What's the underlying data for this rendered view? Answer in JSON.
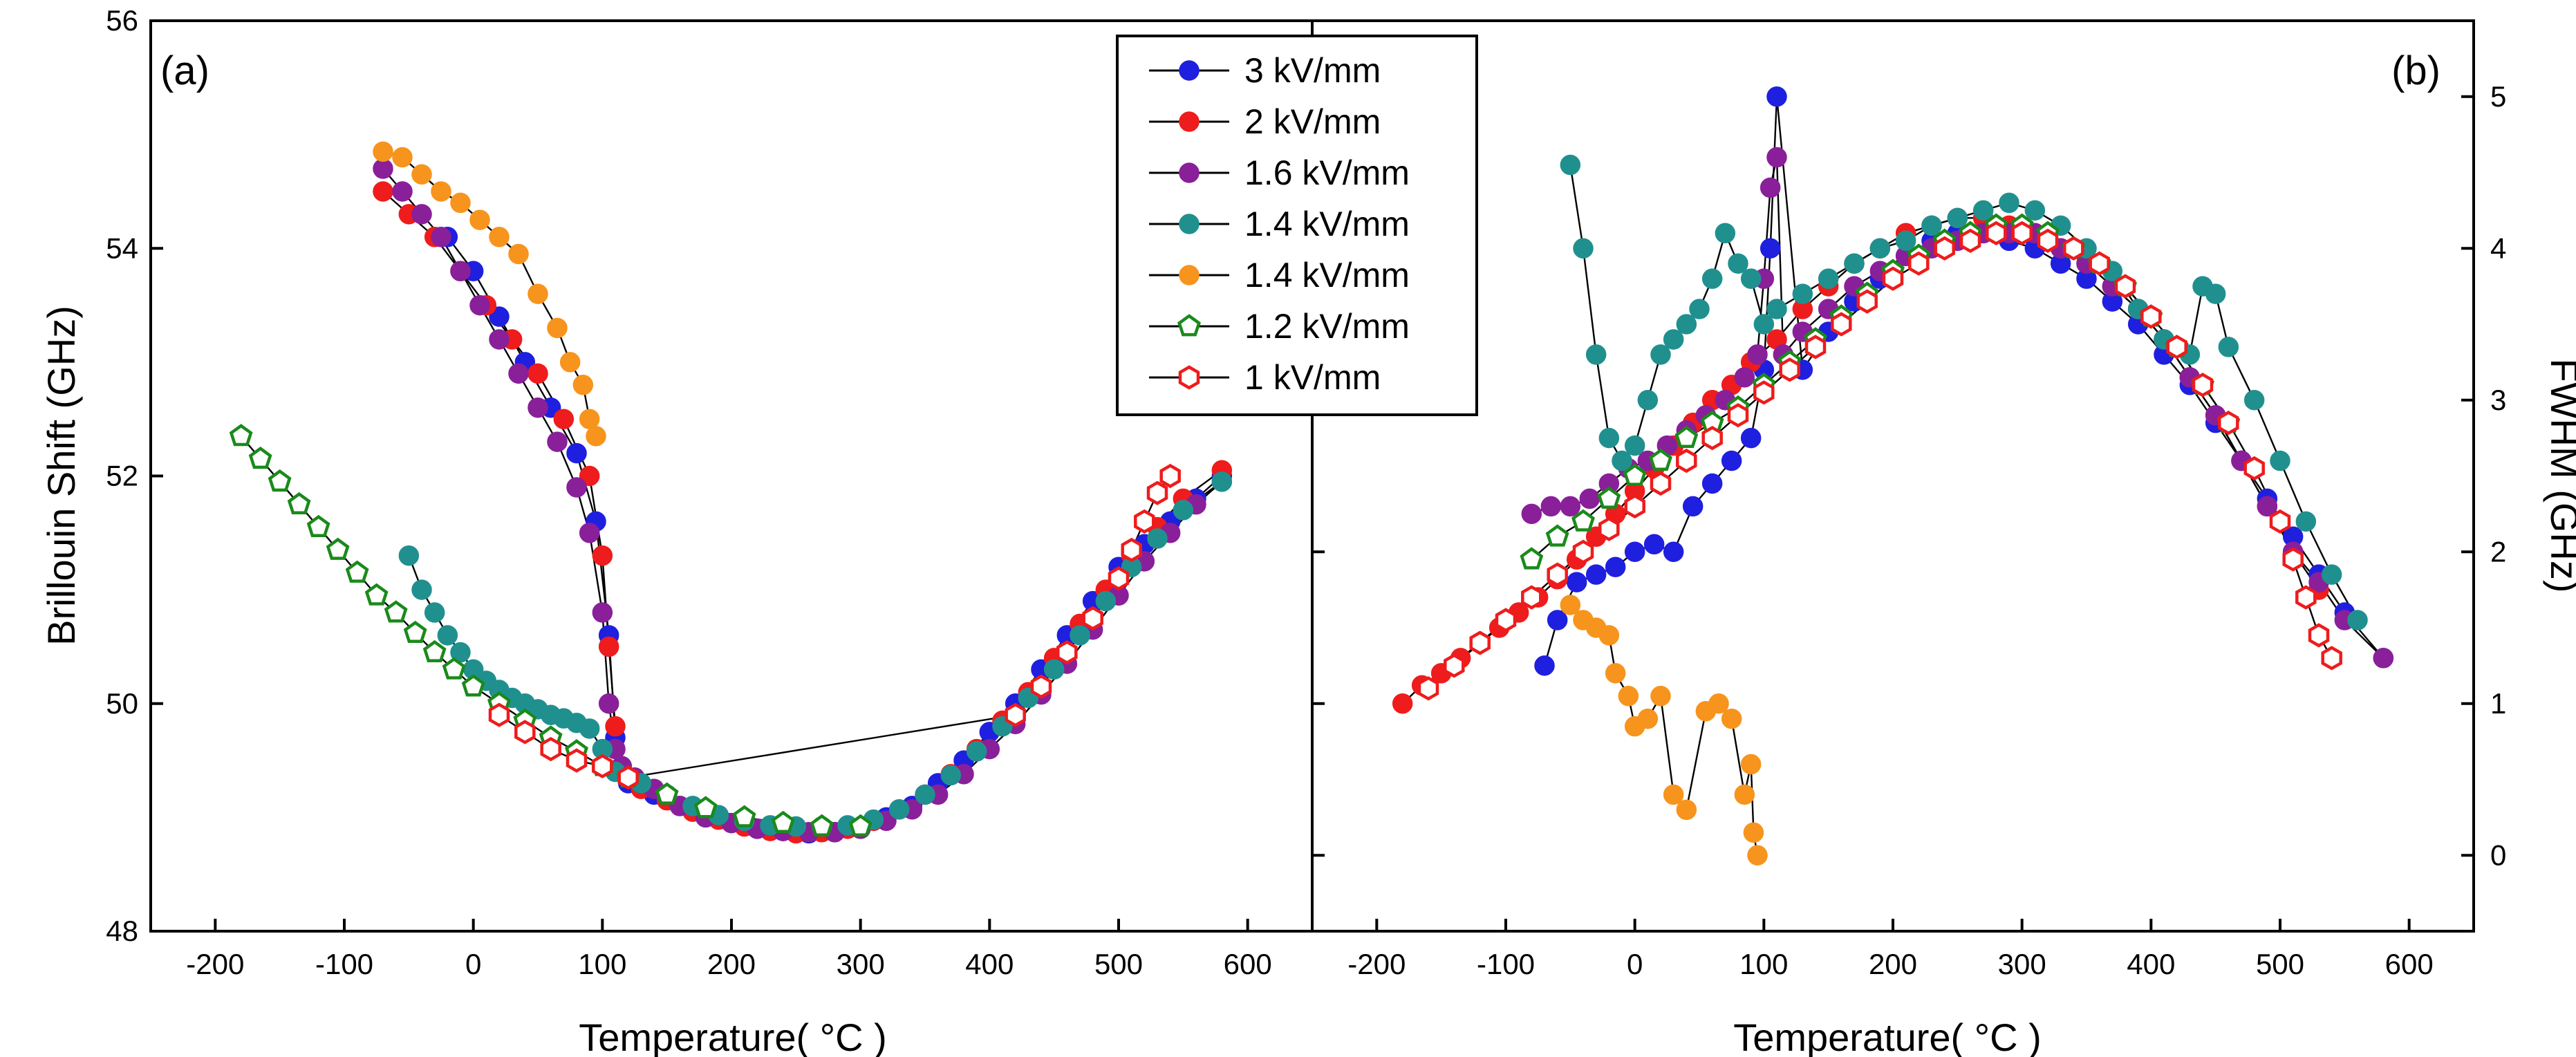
{
  "figure": {
    "left_panel_label": "(a)",
    "right_panel_label": "(b)"
  },
  "chart_data": [
    {
      "type": "scatter",
      "panel": "a",
      "title": "",
      "xlabel": "Temperature( °C )",
      "ylabel": "Brillouin Shift (GHz)",
      "xlim": [
        -250,
        650
      ],
      "ylim": [
        48,
        56
      ],
      "xticks": [
        -200,
        -100,
        0,
        100,
        200,
        300,
        400,
        500,
        600
      ],
      "yticks": [
        48,
        50,
        52,
        54,
        56
      ],
      "legend_position": "top-center",
      "series": [
        {
          "name": "3 kV/mm",
          "color": "#1f1fe0",
          "marker": "filled",
          "x": [
            -20,
            0,
            20,
            40,
            60,
            80,
            95,
            105,
            110,
            115,
            120,
            140,
            160,
            180,
            200,
            220,
            240,
            260,
            280,
            300,
            320,
            340,
            360,
            380,
            400,
            420,
            440,
            460,
            480,
            500,
            520,
            540,
            560,
            580
          ],
          "y": [
            54.1,
            53.8,
            53.4,
            53.0,
            52.6,
            52.2,
            51.6,
            50.6,
            49.7,
            49.4,
            49.3,
            49.2,
            49.1,
            49.0,
            48.95,
            48.9,
            48.88,
            48.86,
            48.87,
            48.9,
            49.0,
            49.1,
            49.3,
            49.5,
            49.75,
            50.0,
            50.3,
            50.6,
            50.9,
            51.2,
            51.4,
            51.6,
            51.8,
            52.0
          ]
        },
        {
          "name": "2 kV/mm",
          "color": "#ee1c1c",
          "marker": "filled",
          "x": [
            -70,
            -50,
            -30,
            -10,
            10,
            30,
            50,
            70,
            90,
            100,
            105,
            110,
            115,
            130,
            150,
            170,
            190,
            210,
            230,
            250,
            270,
            290,
            310,
            330,
            350,
            370,
            390,
            410,
            430,
            450,
            470,
            490,
            510,
            530,
            550,
            580
          ],
          "y": [
            54.5,
            54.3,
            54.1,
            53.8,
            53.5,
            53.2,
            52.9,
            52.5,
            52.0,
            51.3,
            50.5,
            49.8,
            49.4,
            49.25,
            49.15,
            49.05,
            48.98,
            48.92,
            48.88,
            48.86,
            48.87,
            48.9,
            48.97,
            49.07,
            49.2,
            49.38,
            49.6,
            49.85,
            50.1,
            50.4,
            50.7,
            51.0,
            51.3,
            51.55,
            51.8,
            52.05
          ]
        },
        {
          "name": "1.6 kV/mm",
          "color": "#8a1f9a",
          "marker": "filled",
          "x": [
            -70,
            -55,
            -40,
            -25,
            -10,
            5,
            20,
            35,
            50,
            65,
            80,
            90,
            100,
            105,
            110,
            115,
            125,
            140,
            160,
            180,
            200,
            220,
            240,
            260,
            280,
            300,
            320,
            340,
            360,
            380,
            400,
            420,
            440,
            460,
            480,
            500,
            520,
            540,
            560,
            580
          ],
          "y": [
            54.7,
            54.5,
            54.3,
            54.1,
            53.8,
            53.5,
            53.2,
            52.9,
            52.6,
            52.3,
            51.9,
            51.5,
            50.8,
            50.0,
            49.6,
            49.45,
            49.35,
            49.25,
            49.1,
            49.0,
            48.95,
            48.9,
            48.88,
            48.87,
            48.87,
            48.9,
            48.97,
            49.07,
            49.2,
            49.38,
            49.6,
            49.82,
            50.08,
            50.35,
            50.65,
            50.95,
            51.25,
            51.5,
            51.75,
            51.95
          ]
        },
        {
          "name": "1.4 kV/mm",
          "color": "#20908f",
          "marker": "filled",
          "x": [
            -50,
            -40,
            -30,
            -20,
            -10,
            0,
            10,
            20,
            30,
            40,
            50,
            60,
            70,
            80,
            90,
            100,
            110,
            130,
            150,
            170,
            190,
            210,
            230,
            250,
            270,
            290,
            310,
            330,
            350,
            370,
            390,
            410,
            430,
            450,
            470,
            490,
            510,
            530,
            550,
            580
          ],
          "y": [
            51.3,
            51.0,
            50.8,
            50.6,
            50.45,
            50.3,
            50.2,
            50.12,
            50.05,
            50.0,
            49.95,
            49.9,
            49.87,
            49.83,
            49.78,
            49.6,
            49.4,
            49.3,
            49.2,
            49.1,
            49.02,
            48.97,
            48.93,
            48.92,
            48.92,
            48.93,
            48.98,
            49.07,
            49.2,
            49.37,
            49.58,
            49.8,
            50.05,
            50.3,
            50.6,
            50.9,
            51.2,
            51.45,
            51.7,
            51.95
          ]
        },
        {
          "name": "1.4 kV/mm",
          "color": "#f7941d",
          "marker": "filled",
          "x": [
            -70,
            -55,
            -40,
            -25,
            -10,
            5,
            20,
            35,
            50,
            65,
            75,
            85,
            90,
            95
          ],
          "y": [
            54.85,
            54.8,
            54.65,
            54.5,
            54.4,
            54.25,
            54.1,
            53.95,
            53.6,
            53.3,
            53.0,
            52.8,
            52.5,
            52.35
          ]
        },
        {
          "name": "1.2 kV/mm",
          "color": "#1a8a1a",
          "marker": "open-pentagon",
          "x": [
            -180,
            -165,
            -150,
            -135,
            -120,
            -105,
            -90,
            -75,
            -60,
            -45,
            -30,
            -15,
            0,
            20,
            40,
            60,
            80,
            100,
            120,
            150,
            180,
            210,
            240,
            270,
            300
          ],
          "y": [
            52.35,
            52.15,
            51.95,
            51.75,
            51.55,
            51.35,
            51.15,
            50.95,
            50.8,
            50.62,
            50.45,
            50.3,
            50.15,
            50.0,
            49.85,
            49.7,
            49.58,
            49.45,
            49.35,
            49.2,
            49.08,
            49.0,
            48.95,
            48.92,
            48.92
          ]
        },
        {
          "name": "1 kV/mm",
          "color": "#ee1c1c",
          "marker": "open-hexagon",
          "x": [
            20,
            40,
            60,
            80,
            100,
            120,
            420,
            440,
            460,
            480,
            500,
            510,
            520,
            530,
            540
          ],
          "y": [
            49.9,
            49.75,
            49.6,
            49.5,
            49.45,
            49.35,
            49.9,
            50.15,
            50.45,
            50.75,
            51.1,
            51.35,
            51.6,
            51.85,
            52.0
          ]
        }
      ]
    },
    {
      "type": "scatter",
      "panel": "b",
      "title": "",
      "xlabel": "Temperature( °C )",
      "ylabel": "FWHM (GHz)",
      "xlim": [
        -250,
        650
      ],
      "ylim": [
        -0.5,
        5.5
      ],
      "xticks": [
        -200,
        -100,
        0,
        100,
        200,
        300,
        400,
        500,
        600
      ],
      "yticks": [
        0,
        1,
        2,
        3,
        4,
        5
      ],
      "series": [
        {
          "name": "3 kV/mm",
          "color": "#1f1fe0",
          "marker": "filled",
          "x": [
            -70,
            -60,
            -45,
            -30,
            -15,
            0,
            15,
            30,
            45,
            60,
            75,
            90,
            100,
            105,
            110,
            130,
            150,
            170,
            190,
            210,
            230,
            250,
            270,
            290,
            310,
            330,
            350,
            370,
            390,
            410,
            430,
            450,
            470,
            490,
            510,
            530,
            550,
            580
          ],
          "y": [
            1.25,
            1.55,
            1.8,
            1.85,
            1.9,
            2.0,
            2.05,
            2.0,
            2.3,
            2.45,
            2.6,
            2.75,
            3.2,
            4.0,
            5.0,
            3.2,
            3.45,
            3.65,
            3.8,
            3.95,
            4.05,
            4.1,
            4.1,
            4.05,
            4.0,
            3.9,
            3.8,
            3.65,
            3.5,
            3.3,
            3.1,
            2.85,
            2.6,
            2.35,
            2.1,
            1.85,
            1.6,
            1.3
          ]
        },
        {
          "name": "2 kV/mm",
          "color": "#ee1c1c",
          "marker": "filled",
          "x": [
            -180,
            -165,
            -150,
            -135,
            -120,
            -105,
            -90,
            -75,
            -60,
            -45,
            -30,
            -15,
            0,
            15,
            30,
            45,
            60,
            75,
            90,
            110,
            130,
            150,
            170,
            190,
            210,
            230,
            250,
            270,
            290,
            310,
            330,
            350,
            370,
            390,
            410,
            430,
            450,
            470,
            490,
            510,
            530
          ],
          "y": [
            1.0,
            1.12,
            1.2,
            1.3,
            1.4,
            1.5,
            1.6,
            1.7,
            1.82,
            1.95,
            2.1,
            2.25,
            2.4,
            2.55,
            2.7,
            2.85,
            3.0,
            3.1,
            3.25,
            3.4,
            3.6,
            3.75,
            3.9,
            4.0,
            4.1,
            4.15,
            4.2,
            4.2,
            4.15,
            4.1,
            4.0,
            3.9,
            3.75,
            3.6,
            3.4,
            3.15,
            2.9,
            2.6,
            2.3,
            2.0,
            1.75
          ]
        },
        {
          "name": "1.6 kV/mm",
          "color": "#8a1f9a",
          "marker": "filled",
          "x": [
            -80,
            -65,
            -50,
            -35,
            -20,
            -5,
            10,
            25,
            40,
            55,
            70,
            85,
            95,
            100,
            105,
            110,
            115,
            130,
            150,
            170,
            190,
            210,
            230,
            250,
            270,
            290,
            310,
            330,
            350,
            370,
            390,
            410,
            430,
            450,
            470,
            490,
            510,
            530,
            550,
            580
          ],
          "y": [
            2.25,
            2.3,
            2.3,
            2.35,
            2.45,
            2.55,
            2.6,
            2.7,
            2.8,
            2.9,
            3.0,
            3.15,
            3.3,
            3.8,
            4.4,
            4.6,
            3.3,
            3.45,
            3.6,
            3.75,
            3.85,
            3.95,
            4.0,
            4.05,
            4.1,
            4.1,
            4.1,
            4.0,
            3.9,
            3.75,
            3.6,
            3.4,
            3.15,
            2.9,
            2.6,
            2.3,
            2.0,
            1.8,
            1.55,
            1.3
          ]
        },
        {
          "name": "1.4 kV/mm",
          "color": "#20908f",
          "marker": "filled",
          "x": [
            -50,
            -40,
            -30,
            -20,
            -10,
            0,
            10,
            20,
            30,
            40,
            50,
            60,
            70,
            80,
            90,
            100,
            110,
            130,
            150,
            170,
            190,
            210,
            230,
            250,
            270,
            290,
            310,
            330,
            350,
            370,
            390,
            410,
            430,
            440,
            450,
            460,
            480,
            500,
            520,
            540,
            560
          ],
          "y": [
            4.55,
            4.0,
            3.3,
            2.75,
            2.6,
            2.7,
            3.0,
            3.3,
            3.4,
            3.5,
            3.6,
            3.8,
            4.1,
            3.9,
            3.8,
            3.5,
            3.6,
            3.7,
            3.8,
            3.9,
            4.0,
            4.05,
            4.15,
            4.2,
            4.25,
            4.3,
            4.25,
            4.15,
            4.0,
            3.85,
            3.6,
            3.4,
            3.3,
            3.75,
            3.7,
            3.35,
            3.0,
            2.6,
            2.2,
            1.85,
            1.55
          ]
        },
        {
          "name": "1.4 kV/mm",
          "color": "#f7941d",
          "marker": "filled",
          "x": [
            -50,
            -40,
            -30,
            -20,
            -15,
            -5,
            0,
            10,
            20,
            30,
            40,
            55,
            65,
            75,
            85,
            90,
            92,
            95
          ],
          "y": [
            1.65,
            1.55,
            1.5,
            1.45,
            1.2,
            1.05,
            0.85,
            0.9,
            1.05,
            0.4,
            0.3,
            0.95,
            1.0,
            0.9,
            0.4,
            0.6,
            0.15,
            0.0
          ]
        },
        {
          "name": "1.2 kV/mm",
          "color": "#1a8a1a",
          "marker": "open-pentagon",
          "x": [
            -80,
            -60,
            -40,
            -20,
            0,
            20,
            40,
            60,
            80,
            100,
            120,
            140,
            160,
            180,
            200,
            220,
            240,
            260,
            280,
            300,
            320,
            340,
            360,
            380,
            400,
            420,
            440,
            460
          ],
          "y": [
            1.95,
            2.1,
            2.2,
            2.35,
            2.5,
            2.6,
            2.75,
            2.85,
            2.95,
            3.1,
            3.25,
            3.4,
            3.55,
            3.7,
            3.85,
            3.95,
            4.05,
            4.1,
            4.15,
            4.15,
            4.1,
            4.0,
            3.9,
            3.75,
            3.55,
            3.35,
            3.1,
            2.85
          ]
        },
        {
          "name": "1 kV/mm",
          "color": "#ee1c1c",
          "marker": "open-hexagon",
          "x": [
            -160,
            -140,
            -120,
            -100,
            -80,
            -60,
            -40,
            -20,
            0,
            20,
            40,
            60,
            80,
            100,
            120,
            140,
            160,
            180,
            200,
            220,
            240,
            260,
            280,
            300,
            320,
            340,
            360,
            380,
            400,
            420,
            440,
            460,
            480,
            500,
            510,
            520,
            530,
            540
          ],
          "y": [
            1.1,
            1.25,
            1.4,
            1.55,
            1.7,
            1.85,
            2.0,
            2.15,
            2.3,
            2.45,
            2.6,
            2.75,
            2.9,
            3.05,
            3.2,
            3.35,
            3.5,
            3.65,
            3.8,
            3.9,
            4.0,
            4.05,
            4.1,
            4.1,
            4.05,
            4.0,
            3.9,
            3.75,
            3.55,
            3.35,
            3.1,
            2.85,
            2.55,
            2.2,
            1.95,
            1.7,
            1.45,
            1.3
          ]
        }
      ]
    }
  ]
}
